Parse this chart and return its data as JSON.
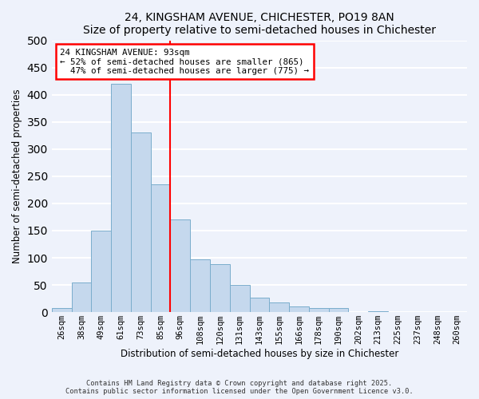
{
  "title": "24, KINGSHAM AVENUE, CHICHESTER, PO19 8AN",
  "subtitle": "Size of property relative to semi-detached houses in Chichester",
  "xlabel": "Distribution of semi-detached houses by size in Chichester",
  "ylabel": "Number of semi-detached properties",
  "bar_labels": [
    "26sqm",
    "38sqm",
    "49sqm",
    "61sqm",
    "73sqm",
    "85sqm",
    "96sqm",
    "108sqm",
    "120sqm",
    "131sqm",
    "143sqm",
    "155sqm",
    "166sqm",
    "178sqm",
    "190sqm",
    "202sqm",
    "213sqm",
    "225sqm",
    "237sqm",
    "248sqm",
    "260sqm"
  ],
  "bar_heights": [
    8,
    55,
    150,
    420,
    330,
    235,
    170,
    97,
    88,
    50,
    27,
    18,
    10,
    8,
    8,
    0,
    2,
    0,
    0,
    0,
    0
  ],
  "bar_color": "#c5d8ed",
  "bar_edge_color": "#7aadcc",
  "vline_x_index": 5.5,
  "vline_color": "red",
  "property_label": "24 KINGSHAM AVENUE: 93sqm",
  "pct_smaller": 52,
  "pct_smaller_count": 865,
  "pct_larger": 47,
  "pct_larger_count": 775,
  "ylim": [
    0,
    500
  ],
  "yticks": [
    0,
    50,
    100,
    150,
    200,
    250,
    300,
    350,
    400,
    450,
    500
  ],
  "footer1": "Contains HM Land Registry data © Crown copyright and database right 2025.",
  "footer2": "Contains public sector information licensed under the Open Government Licence v3.0.",
  "bg_color": "#eef2fb",
  "grid_color": "#ffffff"
}
